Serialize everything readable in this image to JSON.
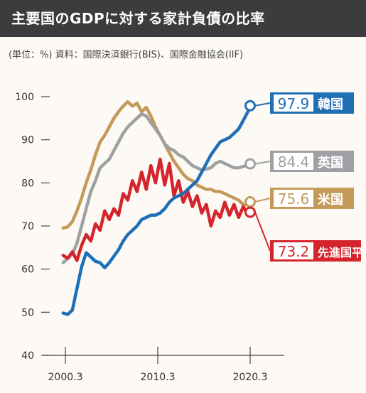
{
  "header": {
    "title": "主要国のGDPに対する家計負債の比率",
    "subtitle": "(単位：%) 資料：国際決済銀行(BIS)、国際金融協会(IIF)"
  },
  "colors": {
    "korea": "#1f6fb5",
    "uk": "#9ea0a3",
    "us": "#c39a5a",
    "advanced": "#d5242b",
    "axis": "#444444"
  },
  "chart_data": {
    "type": "line",
    "title": "主要国のGDPに対する家計負債の比率",
    "subtitle": "(単位：%) 資料：国際決済銀行(BIS)、国際金融協会(IIF)",
    "xlabel": "",
    "ylabel": "",
    "xlim": [
      2000.0,
      2021.0
    ],
    "ylim": [
      40,
      100
    ],
    "yticks": [
      40,
      50,
      60,
      70,
      80,
      90,
      100
    ],
    "xticks": [
      {
        "value": 2000.25,
        "label": "2000.3"
      },
      {
        "value": 2010.25,
        "label": "2010.3"
      },
      {
        "value": 2020.25,
        "label": "2020.3"
      }
    ],
    "grid": false,
    "legend": "end-labels",
    "series": [
      {
        "name": "韓国",
        "end_label": "97.9",
        "color_key": "korea",
        "points": [
          [
            2000.0,
            49.8
          ],
          [
            2000.5,
            49.5
          ],
          [
            2001.0,
            50.5
          ],
          [
            2001.5,
            55.5
          ],
          [
            2002.0,
            60.5
          ],
          [
            2002.5,
            63.8
          ],
          [
            2003.0,
            62.8
          ],
          [
            2003.5,
            61.8
          ],
          [
            2004.0,
            61.5
          ],
          [
            2004.5,
            60.3
          ],
          [
            2005.0,
            61.5
          ],
          [
            2005.5,
            63.0
          ],
          [
            2006.0,
            64.5
          ],
          [
            2006.5,
            66.5
          ],
          [
            2007.0,
            68.0
          ],
          [
            2007.5,
            69.0
          ],
          [
            2008.0,
            70.0
          ],
          [
            2008.5,
            71.5
          ],
          [
            2009.0,
            72.0
          ],
          [
            2009.5,
            72.5
          ],
          [
            2010.0,
            72.5
          ],
          [
            2010.5,
            73.0
          ],
          [
            2011.0,
            74.0
          ],
          [
            2011.5,
            75.5
          ],
          [
            2012.0,
            76.5
          ],
          [
            2012.5,
            77.0
          ],
          [
            2013.0,
            77.5
          ],
          [
            2013.5,
            78.5
          ],
          [
            2014.0,
            79.5
          ],
          [
            2014.5,
            80.5
          ],
          [
            2015.0,
            82.5
          ],
          [
            2015.5,
            84.5
          ],
          [
            2016.0,
            86.5
          ],
          [
            2016.5,
            88.0
          ],
          [
            2017.0,
            89.5
          ],
          [
            2017.5,
            90.0
          ],
          [
            2018.0,
            90.5
          ],
          [
            2018.5,
            91.5
          ],
          [
            2019.0,
            92.5
          ],
          [
            2019.5,
            94.5
          ],
          [
            2020.0,
            96.5
          ],
          [
            2020.25,
            97.9
          ]
        ]
      },
      {
        "name": "英国",
        "end_label": "84.4",
        "color_key": "uk",
        "points": [
          [
            2000.0,
            61.5
          ],
          [
            2000.5,
            62.5
          ],
          [
            2001.0,
            63.5
          ],
          [
            2001.5,
            66.0
          ],
          [
            2002.0,
            70.0
          ],
          [
            2002.5,
            74.0
          ],
          [
            2003.0,
            78.0
          ],
          [
            2003.5,
            80.5
          ],
          [
            2004.0,
            83.5
          ],
          [
            2004.5,
            84.5
          ],
          [
            2005.0,
            85.5
          ],
          [
            2005.5,
            87.5
          ],
          [
            2006.0,
            89.5
          ],
          [
            2006.5,
            91.5
          ],
          [
            2007.0,
            93.0
          ],
          [
            2007.5,
            94.0
          ],
          [
            2008.0,
            95.0
          ],
          [
            2008.5,
            96.0
          ],
          [
            2009.0,
            95.5
          ],
          [
            2009.5,
            94.0
          ],
          [
            2010.0,
            92.5
          ],
          [
            2010.5,
            91.0
          ],
          [
            2011.0,
            89.0
          ],
          [
            2011.5,
            88.0
          ],
          [
            2012.0,
            87.5
          ],
          [
            2012.5,
            86.5
          ],
          [
            2013.0,
            86.0
          ],
          [
            2013.5,
            85.0
          ],
          [
            2014.0,
            84.0
          ],
          [
            2014.5,
            83.5
          ],
          [
            2015.0,
            83.0
          ],
          [
            2015.5,
            83.2
          ],
          [
            2016.0,
            83.5
          ],
          [
            2016.5,
            84.5
          ],
          [
            2017.0,
            85.0
          ],
          [
            2017.5,
            84.5
          ],
          [
            2018.0,
            84.0
          ],
          [
            2018.5,
            83.5
          ],
          [
            2019.0,
            83.5
          ],
          [
            2019.5,
            83.8
          ],
          [
            2020.0,
            84.2
          ],
          [
            2020.25,
            84.4
          ]
        ]
      },
      {
        "name": "米国",
        "end_label": "75.6",
        "color_key": "us",
        "points": [
          [
            2000.0,
            69.5
          ],
          [
            2000.5,
            69.8
          ],
          [
            2001.0,
            71.0
          ],
          [
            2001.5,
            73.5
          ],
          [
            2002.0,
            76.5
          ],
          [
            2002.5,
            80.0
          ],
          [
            2003.0,
            83.0
          ],
          [
            2003.5,
            86.5
          ],
          [
            2004.0,
            89.5
          ],
          [
            2004.5,
            91.0
          ],
          [
            2005.0,
            93.0
          ],
          [
            2005.5,
            95.0
          ],
          [
            2006.0,
            96.5
          ],
          [
            2006.5,
            97.8
          ],
          [
            2007.0,
            98.8
          ],
          [
            2007.5,
            97.8
          ],
          [
            2008.0,
            98.5
          ],
          [
            2008.5,
            96.5
          ],
          [
            2009.0,
            97.5
          ],
          [
            2009.5,
            95.5
          ],
          [
            2010.0,
            93.0
          ],
          [
            2010.5,
            91.0
          ],
          [
            2011.0,
            89.0
          ],
          [
            2011.5,
            87.0
          ],
          [
            2012.0,
            85.0
          ],
          [
            2012.5,
            83.5
          ],
          [
            2013.0,
            82.0
          ],
          [
            2013.5,
            81.0
          ],
          [
            2014.0,
            80.5
          ],
          [
            2014.5,
            79.5
          ],
          [
            2015.0,
            79.0
          ],
          [
            2015.5,
            78.5
          ],
          [
            2016.0,
            78.5
          ],
          [
            2016.5,
            78.0
          ],
          [
            2017.0,
            78.0
          ],
          [
            2017.5,
            77.5
          ],
          [
            2018.0,
            77.0
          ],
          [
            2018.5,
            76.5
          ],
          [
            2019.0,
            76.0
          ],
          [
            2019.5,
            75.0
          ],
          [
            2020.0,
            75.0
          ],
          [
            2020.25,
            75.6
          ]
        ]
      },
      {
        "name": "先進国平均",
        "end_label": "73.2",
        "color_key": "advanced",
        "points": [
          [
            2000.0,
            63.2
          ],
          [
            2000.5,
            62.5
          ],
          [
            2001.0,
            64.0
          ],
          [
            2001.5,
            62.0
          ],
          [
            2002.0,
            65.5
          ],
          [
            2002.5,
            68.0
          ],
          [
            2003.0,
            66.5
          ],
          [
            2003.5,
            70.5
          ],
          [
            2004.0,
            69.0
          ],
          [
            2004.5,
            73.5
          ],
          [
            2005.0,
            71.5
          ],
          [
            2005.5,
            74.0
          ],
          [
            2006.0,
            72.5
          ],
          [
            2006.5,
            77.5
          ],
          [
            2007.0,
            76.0
          ],
          [
            2007.5,
            80.5
          ],
          [
            2008.0,
            78.0
          ],
          [
            2008.5,
            82.5
          ],
          [
            2009.0,
            78.5
          ],
          [
            2009.5,
            84.0
          ],
          [
            2010.0,
            80.0
          ],
          [
            2010.5,
            85.5
          ],
          [
            2011.0,
            79.5
          ],
          [
            2011.5,
            84.5
          ],
          [
            2012.0,
            77.0
          ],
          [
            2012.5,
            80.5
          ],
          [
            2013.0,
            75.5
          ],
          [
            2013.5,
            78.0
          ],
          [
            2014.0,
            74.5
          ],
          [
            2014.5,
            77.0
          ],
          [
            2015.0,
            73.0
          ],
          [
            2015.5,
            75.0
          ],
          [
            2016.0,
            70.0
          ],
          [
            2016.5,
            73.5
          ],
          [
            2017.0,
            72.0
          ],
          [
            2017.5,
            75.5
          ],
          [
            2018.0,
            72.5
          ],
          [
            2018.5,
            75.0
          ],
          [
            2019.0,
            72.0
          ],
          [
            2019.5,
            74.5
          ],
          [
            2020.0,
            72.5
          ],
          [
            2020.25,
            73.2
          ]
        ]
      }
    ]
  }
}
